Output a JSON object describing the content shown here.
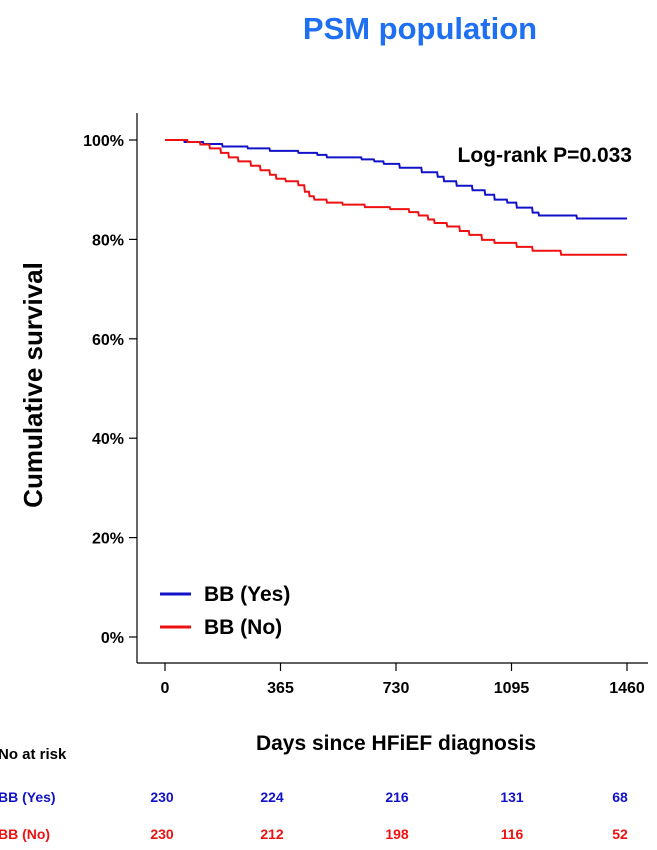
{
  "chart_data": {
    "type": "line",
    "title": "PSM population",
    "title_color": "#1f6ff2",
    "annotation": "Log-rank P=0.033",
    "xlabel": "Days since HFiEF diagnosis",
    "ylabel": "Cumulative survival",
    "xlim": [
      0,
      1460
    ],
    "ylim": [
      0,
      100
    ],
    "x_ticks": [
      0,
      365,
      730,
      1095,
      1460
    ],
    "y_ticks": [
      0,
      20,
      40,
      60,
      80,
      100
    ],
    "y_tick_labels": [
      "0%",
      "20%",
      "40%",
      "60%",
      "80%",
      "100%"
    ],
    "grid": false,
    "legend_position": "bottom-left",
    "series": [
      {
        "name": "BB (Yes)",
        "color": "#1212c8",
        "points": [
          [
            0,
            100
          ],
          [
            60,
            100
          ],
          [
            62,
            99.6
          ],
          [
            120,
            99.6
          ],
          [
            122,
            99.2
          ],
          [
            180,
            99.2
          ],
          [
            182,
            98.7
          ],
          [
            260,
            98.7
          ],
          [
            262,
            98.3
          ],
          [
            330,
            98.3
          ],
          [
            332,
            97.8
          ],
          [
            420,
            97.8
          ],
          [
            422,
            97.4
          ],
          [
            480,
            97.4
          ],
          [
            482,
            97
          ],
          [
            510,
            97
          ],
          [
            512,
            96.5
          ],
          [
            620,
            96.5
          ],
          [
            622,
            96.1
          ],
          [
            660,
            96.1
          ],
          [
            662,
            95.7
          ],
          [
            690,
            95.7
          ],
          [
            692,
            95.2
          ],
          [
            740,
            95.2
          ],
          [
            742,
            94.4
          ],
          [
            810,
            94.4
          ],
          [
            812,
            93.5
          ],
          [
            860,
            93.5
          ],
          [
            862,
            92.6
          ],
          [
            880,
            92.6
          ],
          [
            882,
            91.7
          ],
          [
            920,
            91.7
          ],
          [
            922,
            90.8
          ],
          [
            970,
            90.8
          ],
          [
            972,
            89.9
          ],
          [
            1010,
            89.9
          ],
          [
            1012,
            89
          ],
          [
            1040,
            89
          ],
          [
            1042,
            88
          ],
          [
            1080,
            88
          ],
          [
            1082,
            87.4
          ],
          [
            1110,
            87.4
          ],
          [
            1112,
            86.4
          ],
          [
            1160,
            86.4
          ],
          [
            1162,
            85.4
          ],
          [
            1180,
            85.4
          ],
          [
            1182,
            84.8
          ],
          [
            1300,
            84.8
          ],
          [
            1302,
            84.2
          ],
          [
            1460,
            84.2
          ]
        ]
      },
      {
        "name": "BB (No)",
        "color": "#ee1111",
        "points": [
          [
            0,
            100
          ],
          [
            70,
            100
          ],
          [
            72,
            99.6
          ],
          [
            110,
            99.6
          ],
          [
            112,
            99.1
          ],
          [
            140,
            99.1
          ],
          [
            142,
            98.3
          ],
          [
            175,
            98.3
          ],
          [
            177,
            97.4
          ],
          [
            200,
            97.4
          ],
          [
            202,
            96.5
          ],
          [
            230,
            96.5
          ],
          [
            232,
            95.7
          ],
          [
            270,
            95.7
          ],
          [
            272,
            94.8
          ],
          [
            300,
            94.8
          ],
          [
            302,
            93.9
          ],
          [
            330,
            93.9
          ],
          [
            332,
            93
          ],
          [
            350,
            93
          ],
          [
            352,
            92.2
          ],
          [
            380,
            92.2
          ],
          [
            382,
            91.7
          ],
          [
            420,
            91.7
          ],
          [
            422,
            90.9
          ],
          [
            440,
            90.9
          ],
          [
            442,
            89.6
          ],
          [
            455,
            89.6
          ],
          [
            457,
            88.7
          ],
          [
            470,
            88.7
          ],
          [
            472,
            88
          ],
          [
            510,
            88
          ],
          [
            512,
            87.4
          ],
          [
            560,
            87.4
          ],
          [
            562,
            87
          ],
          [
            630,
            87
          ],
          [
            632,
            86.5
          ],
          [
            710,
            86.5
          ],
          [
            712,
            86.1
          ],
          [
            770,
            86.1
          ],
          [
            772,
            85.5
          ],
          [
            800,
            85.5
          ],
          [
            802,
            84.8
          ],
          [
            830,
            84.8
          ],
          [
            832,
            84
          ],
          [
            850,
            84
          ],
          [
            852,
            83.3
          ],
          [
            890,
            83.3
          ],
          [
            892,
            82.6
          ],
          [
            930,
            82.6
          ],
          [
            932,
            81.7
          ],
          [
            960,
            81.7
          ],
          [
            962,
            80.9
          ],
          [
            1000,
            80.9
          ],
          [
            1002,
            79.9
          ],
          [
            1040,
            79.9
          ],
          [
            1042,
            79.3
          ],
          [
            1110,
            79.3
          ],
          [
            1112,
            78.5
          ],
          [
            1160,
            78.5
          ],
          [
            1162,
            77.7
          ],
          [
            1250,
            77.7
          ],
          [
            1252,
            76.9
          ],
          [
            1460,
            76.9
          ]
        ]
      }
    ]
  },
  "risk_table": {
    "header": "No at risk",
    "rows": [
      {
        "label": "BB (Yes)",
        "color": "#1212c8",
        "values": [
          "230",
          "224",
          "216",
          "131",
          "68"
        ]
      },
      {
        "label": "BB (No)",
        "color": "#ee1111",
        "values": [
          "230",
          "212",
          "198",
          "116",
          "52"
        ]
      }
    ]
  }
}
